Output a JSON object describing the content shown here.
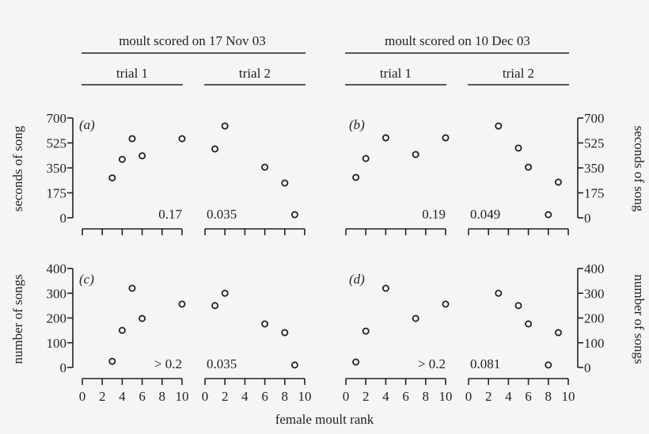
{
  "headers": {
    "group_left": "moult scored on 17 Nov 03",
    "group_right": "moult scored on 10 Dec 03",
    "trial1": "trial 1",
    "trial2": "trial 2"
  },
  "axes": {
    "x_label": "female moult rank",
    "x_ticks": [
      "0",
      "2",
      "4",
      "6",
      "8",
      "10"
    ],
    "y_top_label": "seconds of song",
    "y_top_ticks": [
      "0",
      "175",
      "350",
      "525",
      "700"
    ],
    "y_bottom_label": "number of songs",
    "y_bottom_ticks": [
      "0",
      "100",
      "200",
      "300",
      "400"
    ]
  },
  "chart_data": [
    {
      "type": "scatter",
      "panel": "(a)",
      "title": "moult scored on 17 Nov 03",
      "xlabel": "female moult rank",
      "ylabel": "seconds of song",
      "xlim": [
        0,
        10
      ],
      "ylim": [
        0,
        700
      ],
      "series": [
        {
          "name": "trial 1",
          "x": [
            3,
            4,
            5,
            6,
            10
          ],
          "y": [
            280,
            410,
            555,
            435,
            555
          ],
          "p_value": "0.17"
        },
        {
          "name": "trial 2",
          "x": [
            1,
            2,
            6,
            8,
            9
          ],
          "y": [
            483,
            644,
            355,
            244,
            22
          ],
          "p_value": "0.035"
        }
      ]
    },
    {
      "type": "scatter",
      "panel": "(b)",
      "title": "moult scored on 10 Dec 03",
      "xlabel": "female moult rank",
      "ylabel": "seconds of song",
      "xlim": [
        0,
        10
      ],
      "ylim": [
        0,
        700
      ],
      "series": [
        {
          "name": "trial 1",
          "x": [
            1,
            2,
            4,
            7,
            10
          ],
          "y": [
            283,
            416,
            561,
            444,
            561
          ],
          "p_value": "0.19"
        },
        {
          "name": "trial 2",
          "x": [
            3,
            5,
            6,
            8,
            9
          ],
          "y": [
            644,
            489,
            355,
            22,
            250
          ],
          "p_value": "0.049"
        }
      ]
    },
    {
      "type": "scatter",
      "panel": "(c)",
      "title": "moult scored on 17 Nov 03",
      "xlabel": "female moult rank",
      "ylabel": "number of songs",
      "xlim": [
        0,
        10
      ],
      "ylim": [
        0,
        400
      ],
      "series": [
        {
          "name": "trial 1",
          "x": [
            3,
            4,
            5,
            6,
            10
          ],
          "y": [
            25,
            150,
            320,
            198,
            256
          ],
          "p_value": "> 0.2"
        },
        {
          "name": "trial 2",
          "x": [
            1,
            2,
            6,
            8,
            9
          ],
          "y": [
            250,
            300,
            176,
            141,
            10
          ],
          "p_value": "0.035"
        }
      ]
    },
    {
      "type": "scatter",
      "panel": "(d)",
      "title": "moult scored on 10 Dec 03",
      "xlabel": "female moult rank",
      "ylabel": "number of songs",
      "xlim": [
        0,
        10
      ],
      "ylim": [
        0,
        400
      ],
      "series": [
        {
          "name": "trial 1",
          "x": [
            1,
            2,
            4,
            7,
            10
          ],
          "y": [
            22,
            147,
            320,
            198,
            256
          ],
          "p_value": "> 0.2"
        },
        {
          "name": "trial 2",
          "x": [
            3,
            5,
            6,
            8,
            9
          ],
          "y": [
            300,
            250,
            176,
            10,
            141
          ],
          "p_value": "0.081"
        }
      ]
    }
  ]
}
